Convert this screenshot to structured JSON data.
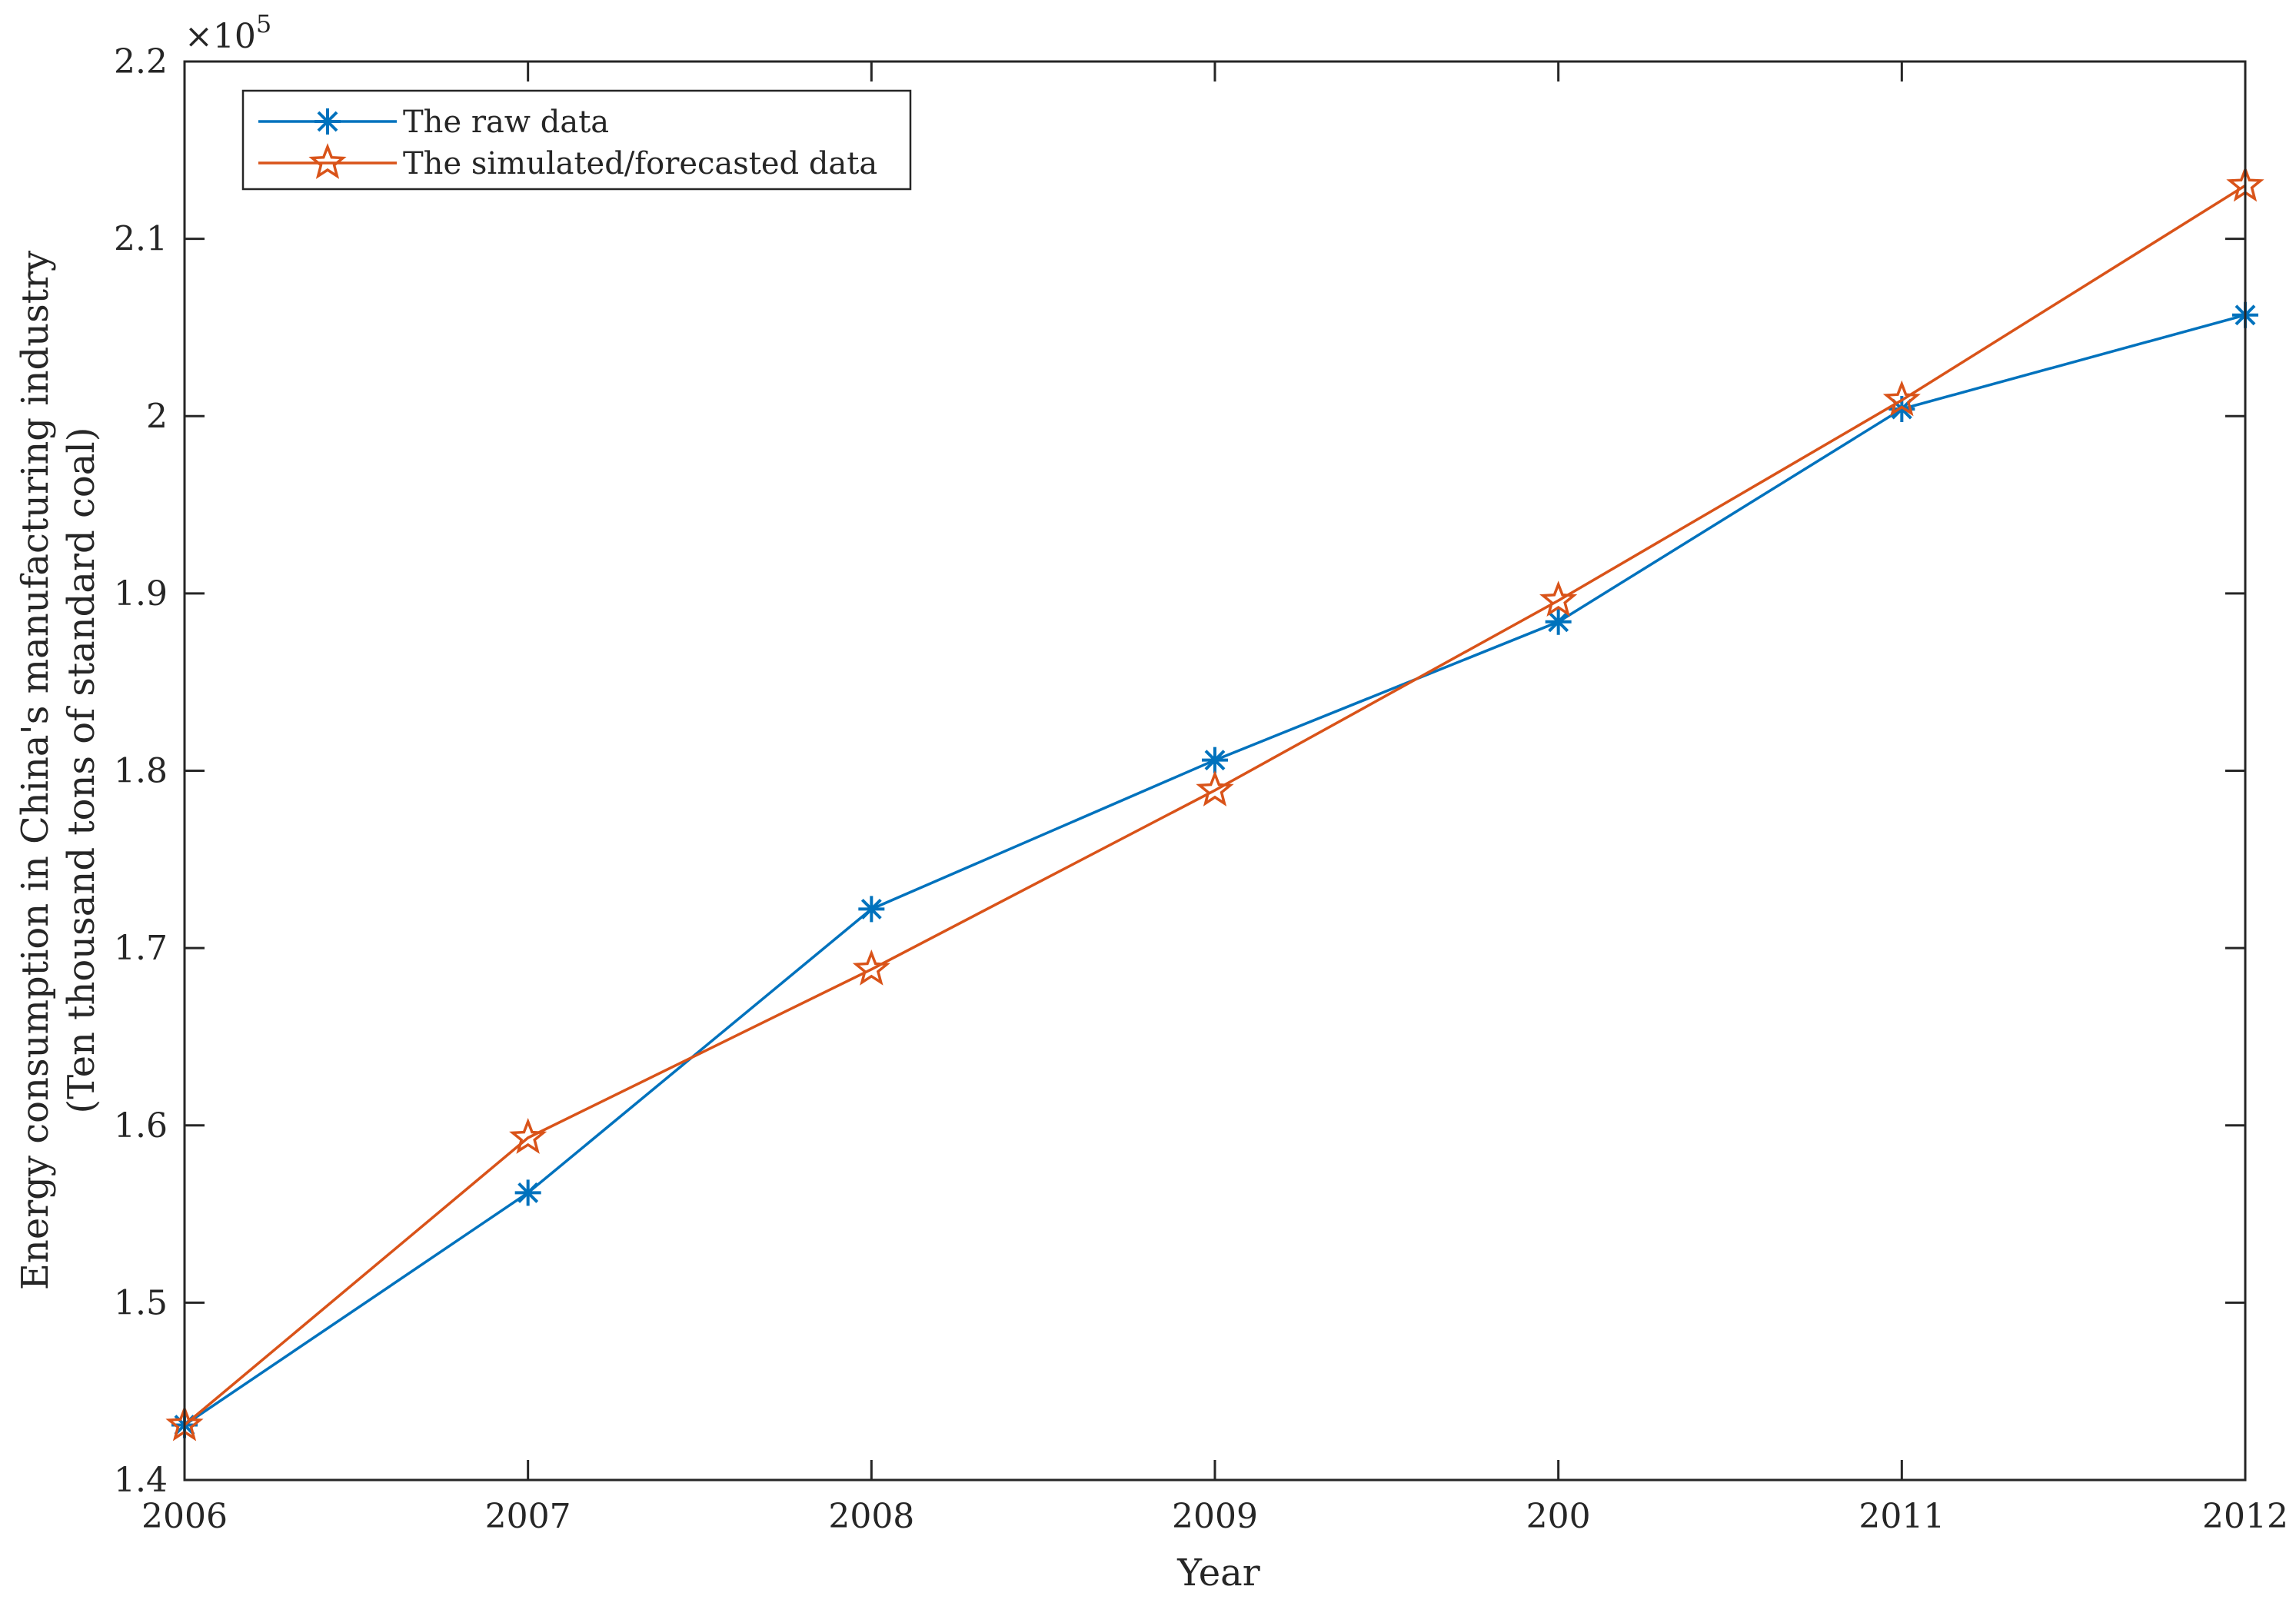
{
  "chart_data": {
    "type": "line",
    "xlabel": "Year",
    "ylabel": [
      "Energy consumption in China's manufacturing industry",
      "(Ten thousand tons of standard coal)"
    ],
    "x_tick_labels": [
      "2006",
      "2007",
      "2008",
      "2009",
      "200",
      "2011",
      "2012"
    ],
    "y_tick_labels": [
      "1.4",
      "1.5",
      "1.6",
      "1.7",
      "1.8",
      "1.9",
      "2",
      "2.1",
      "2.2"
    ],
    "y_multiplier": "×10",
    "y_multiplier_exponent": "5",
    "ylim": [
      1.4,
      2.2
    ],
    "legend_position": "top-left",
    "grid": false,
    "series": [
      {
        "name": "The raw data",
        "marker": "asterisk",
        "color": "#0072BD",
        "values": [
          1.431,
          1.562,
          1.722,
          1.806,
          1.884,
          2.004,
          2.057
        ]
      },
      {
        "name": "The simulated/forecasted data",
        "marker": "pentagram",
        "color": "#D95319",
        "values": [
          1.431,
          1.593,
          1.688,
          1.789,
          1.896,
          2.009,
          2.13
        ]
      }
    ]
  }
}
